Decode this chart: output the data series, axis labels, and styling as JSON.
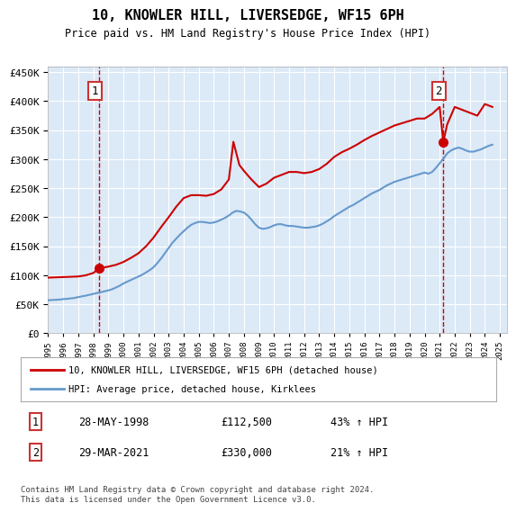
{
  "title": "10, KNOWLER HILL, LIVERSEDGE, WF15 6PH",
  "subtitle": "Price paid vs. HM Land Registry's House Price Index (HPI)",
  "ytick_values": [
    0,
    50000,
    100000,
    150000,
    200000,
    250000,
    300000,
    350000,
    400000,
    450000
  ],
  "xlim_start": 1995.0,
  "xlim_end": 2025.5,
  "ylim_min": 0,
  "ylim_max": 460000,
  "background_color": "#dce9f7",
  "grid_color": "#ffffff",
  "red_line_color": "#cc0000",
  "blue_line_color": "#6699cc",
  "marker1_date": 1998.41,
  "marker1_value": 112500,
  "marker2_date": 2021.24,
  "marker2_value": 330000,
  "legend_label1": "10, KNOWLER HILL, LIVERSEDGE, WF15 6PH (detached house)",
  "legend_label2": "HPI: Average price, detached house, Kirklees",
  "annotation1_date": "28-MAY-1998",
  "annotation1_price": "£112,500",
  "annotation1_hpi": "43% ↑ HPI",
  "annotation2_date": "29-MAR-2021",
  "annotation2_price": "£330,000",
  "annotation2_hpi": "21% ↑ HPI",
  "footer": "Contains HM Land Registry data © Crown copyright and database right 2024.\nThis data is licensed under the Open Government Licence v3.0.",
  "hpi_data": {
    "years": [
      1995.0,
      1995.25,
      1995.5,
      1995.75,
      1996.0,
      1996.25,
      1996.5,
      1996.75,
      1997.0,
      1997.25,
      1997.5,
      1997.75,
      1998.0,
      1998.25,
      1998.5,
      1998.75,
      1999.0,
      1999.25,
      1999.5,
      1999.75,
      2000.0,
      2000.25,
      2000.5,
      2000.75,
      2001.0,
      2001.25,
      2001.5,
      2001.75,
      2002.0,
      2002.25,
      2002.5,
      2002.75,
      2003.0,
      2003.25,
      2003.5,
      2003.75,
      2004.0,
      2004.25,
      2004.5,
      2004.75,
      2005.0,
      2005.25,
      2005.5,
      2005.75,
      2006.0,
      2006.25,
      2006.5,
      2006.75,
      2007.0,
      2007.25,
      2007.5,
      2007.75,
      2008.0,
      2008.25,
      2008.5,
      2008.75,
      2009.0,
      2009.25,
      2009.5,
      2009.75,
      2010.0,
      2010.25,
      2010.5,
      2010.75,
      2011.0,
      2011.25,
      2011.5,
      2011.75,
      2012.0,
      2012.25,
      2012.5,
      2012.75,
      2013.0,
      2013.25,
      2013.5,
      2013.75,
      2014.0,
      2014.25,
      2014.5,
      2014.75,
      2015.0,
      2015.25,
      2015.5,
      2015.75,
      2016.0,
      2016.25,
      2016.5,
      2016.75,
      2017.0,
      2017.25,
      2017.5,
      2017.75,
      2018.0,
      2018.25,
      2018.5,
      2018.75,
      2019.0,
      2019.25,
      2019.5,
      2019.75,
      2020.0,
      2020.25,
      2020.5,
      2020.75,
      2021.0,
      2021.25,
      2021.5,
      2021.75,
      2022.0,
      2022.25,
      2022.5,
      2022.75,
      2023.0,
      2023.25,
      2023.5,
      2023.75,
      2024.0,
      2024.25,
      2024.5
    ],
    "values": [
      57000,
      57500,
      57800,
      58200,
      59000,
      59500,
      60200,
      61000,
      62500,
      63800,
      65000,
      66500,
      68000,
      69500,
      71000,
      72500,
      74000,
      76000,
      79000,
      82000,
      86000,
      89000,
      92000,
      95000,
      98000,
      101000,
      105000,
      109000,
      114000,
      121000,
      129000,
      138000,
      147000,
      156000,
      163000,
      170000,
      176000,
      182000,
      187000,
      190000,
      192000,
      192000,
      191000,
      190000,
      191000,
      193000,
      196000,
      199000,
      203000,
      208000,
      211000,
      210000,
      208000,
      203000,
      196000,
      188000,
      182000,
      180000,
      181000,
      183000,
      186000,
      188000,
      188000,
      186000,
      185000,
      185000,
      184000,
      183000,
      182000,
      182000,
      183000,
      184000,
      186000,
      189000,
      193000,
      197000,
      202000,
      206000,
      210000,
      214000,
      218000,
      221000,
      225000,
      229000,
      233000,
      237000,
      241000,
      244000,
      247000,
      251000,
      255000,
      258000,
      261000,
      263000,
      265000,
      267000,
      269000,
      271000,
      273000,
      275000,
      277000,
      275000,
      278000,
      285000,
      293000,
      301000,
      310000,
      315000,
      318000,
      320000,
      318000,
      315000,
      313000,
      313000,
      315000,
      317000,
      320000,
      323000,
      325000
    ]
  },
  "red_line_data": {
    "years": [
      1995.0,
      1995.5,
      1996.0,
      1996.5,
      1997.0,
      1997.5,
      1998.0,
      1998.41,
      1998.6,
      1999.0,
      1999.5,
      2000.0,
      2000.5,
      2001.0,
      2001.5,
      2002.0,
      2002.5,
      2003.0,
      2003.5,
      2004.0,
      2004.5,
      2005.0,
      2005.5,
      2006.0,
      2006.5,
      2007.0,
      2007.3,
      2007.7,
      2008.0,
      2008.5,
      2009.0,
      2009.5,
      2010.0,
      2010.5,
      2011.0,
      2011.5,
      2012.0,
      2012.5,
      2013.0,
      2013.5,
      2014.0,
      2014.5,
      2015.0,
      2015.5,
      2016.0,
      2016.5,
      2017.0,
      2017.5,
      2018.0,
      2018.5,
      2019.0,
      2019.5,
      2020.0,
      2020.5,
      2021.0,
      2021.24,
      2021.5,
      2022.0,
      2022.5,
      2023.0,
      2023.5,
      2024.0,
      2024.5
    ],
    "values": [
      96000,
      96500,
      97000,
      97500,
      98000,
      100000,
      104000,
      112500,
      113000,
      115000,
      118000,
      123000,
      130000,
      138000,
      150000,
      165000,
      183000,
      200000,
      218000,
      233000,
      238000,
      238000,
      237000,
      240000,
      248000,
      265000,
      330000,
      290000,
      280000,
      265000,
      252000,
      258000,
      268000,
      273000,
      278000,
      278000,
      276000,
      278000,
      283000,
      292000,
      304000,
      312000,
      318000,
      325000,
      333000,
      340000,
      346000,
      352000,
      358000,
      362000,
      366000,
      370000,
      370000,
      378000,
      390000,
      330000,
      360000,
      390000,
      385000,
      380000,
      375000,
      395000,
      390000
    ]
  }
}
